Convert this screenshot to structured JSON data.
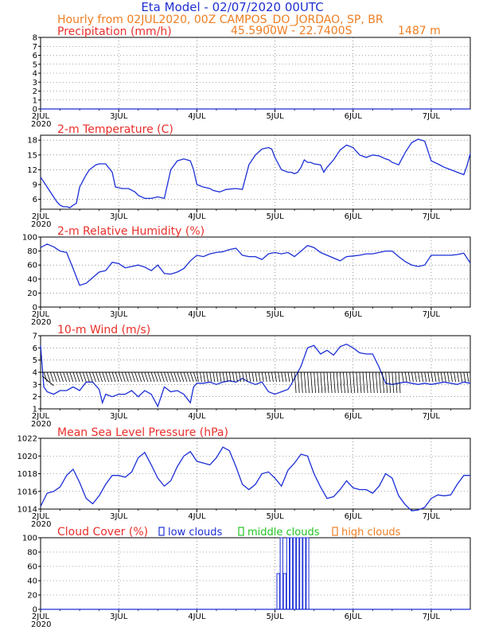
{
  "header": {
    "title": "Eta Model - 02/07/2020 00UTC",
    "subtitle": "Hourly from 02JUL2020, 00Z  CAMPOS_DO_JORDAO, SP, BR",
    "coords": "45.5900W - 22.7400S",
    "elevation": "1487  m"
  },
  "colors": {
    "header_blue": "#1f2fd0",
    "header_orange": "#ee7d22",
    "panel_title": "#e8302b",
    "series": "#1c2fd6",
    "low_clouds": "#1c2fd6",
    "middle_clouds": "#22c322",
    "high_clouds": "#ee7d22"
  },
  "x_axis": {
    "day_labels": [
      "2JUL",
      "3JUL",
      "4JUL",
      "5JUL",
      "6JUL",
      "7JUL"
    ],
    "year_label": "2020",
    "range_hours": [
      0,
      132
    ]
  },
  "panels": {
    "precip_title": "Precipitation (mm/h)",
    "temp_title": "2-m Temperature (C)",
    "rh_title": "2-m Relative Humidity (%)",
    "wind_title": "10-m Wind (m/s)",
    "pressure_title": "Mean Sea Level Pressure (hPa)",
    "cloud_title": "Cloud Cover (%)",
    "legend": {
      "low": "low clouds",
      "middle": "middle clouds",
      "high": "high clouds"
    }
  },
  "chart_data": [
    {
      "id": "precip",
      "type": "line",
      "title": "Precipitation (mm/h)",
      "ylim": [
        0,
        8
      ],
      "yticks": [
        0,
        1,
        2,
        3,
        4,
        5,
        6,
        7,
        8
      ],
      "x": [
        0,
        132
      ],
      "y": [
        0,
        0
      ]
    },
    {
      "id": "temp",
      "type": "line",
      "title": "2-m Temperature (C)",
      "ylim": [
        4,
        19
      ],
      "yticks": [
        6,
        9,
        12,
        15,
        18
      ],
      "x": [
        0,
        2,
        4,
        5,
        6,
        7,
        8,
        9,
        10,
        11,
        12,
        14,
        15,
        17,
        18,
        20,
        22,
        23,
        25,
        27,
        29,
        30,
        32,
        34,
        36,
        38,
        40,
        42,
        44,
        46,
        47,
        48,
        50,
        52,
        53,
        55,
        57,
        60,
        62,
        64,
        66,
        68,
        70,
        71,
        72,
        74,
        76,
        77,
        78,
        79,
        80,
        81,
        82,
        83,
        84,
        86,
        87,
        88,
        90,
        92,
        94,
        96,
        98,
        100,
        102,
        104,
        106,
        107,
        108,
        110,
        112,
        114,
        116,
        118,
        120,
        122,
        124,
        126,
        128,
        130,
        131,
        132
      ],
      "y": [
        10.5,
        8.5,
        6.5,
        5.5,
        4.8,
        4.5,
        4.5,
        4.3,
        4.8,
        5.2,
        8.5,
        11.0,
        12.0,
        13.0,
        13.2,
        13.2,
        11.5,
        8.5,
        8.2,
        8.2,
        7.5,
        6.8,
        6.2,
        6.2,
        6.5,
        6.2,
        12.0,
        13.8,
        14.2,
        13.8,
        12.0,
        9.0,
        8.5,
        8.2,
        7.8,
        7.5,
        8.0,
        8.2,
        8.0,
        13.0,
        15.0,
        16.2,
        16.5,
        16.2,
        14.5,
        12.0,
        11.5,
        11.5,
        11.2,
        11.5,
        12.5,
        14.0,
        13.5,
        13.5,
        13.2,
        13.0,
        11.5,
        12.5,
        14.0,
        16.0,
        17.0,
        16.5,
        15.0,
        14.5,
        15.0,
        14.8,
        14.2,
        14.0,
        13.5,
        13.0,
        15.5,
        17.5,
        18.2,
        17.8,
        13.8,
        13.2,
        12.5,
        12.0,
        11.5,
        11.0,
        12.8,
        15.3
      ]
    },
    {
      "id": "rh",
      "type": "line",
      "title": "2-m Relative Humidity (%)",
      "ylim": [
        0,
        100
      ],
      "yticks": [
        0,
        20,
        40,
        60,
        80,
        100
      ],
      "x": [
        0,
        2,
        4,
        6,
        8,
        10,
        12,
        14,
        16,
        18,
        20,
        22,
        24,
        26,
        28,
        30,
        32,
        34,
        36,
        38,
        40,
        42,
        44,
        46,
        48,
        50,
        52,
        54,
        56,
        58,
        60,
        62,
        64,
        66,
        68,
        70,
        72,
        74,
        76,
        78,
        80,
        82,
        84,
        86,
        88,
        90,
        92,
        94,
        96,
        98,
        100,
        102,
        104,
        106,
        108,
        110,
        112,
        114,
        116,
        118,
        120,
        122,
        124,
        126,
        128,
        130,
        132
      ],
      "y": [
        85,
        90,
        86,
        80,
        78,
        55,
        31,
        34,
        42,
        50,
        52,
        64,
        62,
        56,
        58,
        60,
        57,
        52,
        60,
        48,
        47,
        50,
        55,
        66,
        74,
        72,
        76,
        78,
        79,
        82,
        84,
        74,
        72,
        72,
        68,
        76,
        78,
        76,
        78,
        72,
        80,
        88,
        85,
        78,
        74,
        70,
        66,
        72,
        73,
        74,
        76,
        76,
        78,
        80,
        80,
        72,
        65,
        60,
        58,
        60,
        74,
        74,
        74,
        74,
        75,
        77,
        63
      ]
    },
    {
      "id": "wind",
      "type": "line",
      "title": "10-m Wind (m/s)",
      "ylim": [
        1,
        7
      ],
      "yticks": [
        1,
        2,
        3,
        4,
        5,
        6,
        7
      ],
      "x": [
        0,
        1,
        2,
        4,
        6,
        8,
        10,
        12,
        14,
        16,
        18,
        19,
        20,
        22,
        24,
        26,
        28,
        30,
        32,
        34,
        36,
        38,
        40,
        42,
        44,
        46,
        47,
        48,
        50,
        52,
        54,
        56,
        58,
        60,
        62,
        64,
        66,
        68,
        70,
        72,
        74,
        76,
        77,
        78,
        80,
        82,
        84,
        86,
        88,
        90,
        92,
        94,
        96,
        98,
        100,
        102,
        104,
        106,
        108,
        110,
        112,
        114,
        116,
        118,
        120,
        122,
        124,
        126,
        128,
        130,
        132
      ],
      "y": [
        6.2,
        2.8,
        2.4,
        2.2,
        2.5,
        2.5,
        2.8,
        2.5,
        3.2,
        3.2,
        2.6,
        1.5,
        2.2,
        2.0,
        2.2,
        2.2,
        2.5,
        2.0,
        2.5,
        2.2,
        1.2,
        2.8,
        2.4,
        2.5,
        2.2,
        1.5,
        2.8,
        3.1,
        3.1,
        3.2,
        3.0,
        3.2,
        3.3,
        3.2,
        3.5,
        3.2,
        3.0,
        3.2,
        2.4,
        2.2,
        2.4,
        2.6,
        3.0,
        3.5,
        4.5,
        6.0,
        6.2,
        5.5,
        5.8,
        5.4,
        6.1,
        6.3,
        6.0,
        5.6,
        5.5,
        5.5,
        4.4,
        3.1,
        3.0,
        3.1,
        3.2,
        3.1,
        3.0,
        3.1,
        3.0,
        3.1,
        3.2,
        3.1,
        3.0,
        3.2,
        3.1
      ]
    },
    {
      "id": "pressure",
      "type": "line",
      "title": "Mean Sea Level Pressure (hPa)",
      "ylim": [
        1014,
        1022
      ],
      "yticks": [
        1014,
        1016,
        1018,
        1020,
        1022
      ],
      "x": [
        0,
        2,
        4,
        6,
        8,
        10,
        12,
        14,
        16,
        18,
        20,
        22,
        24,
        26,
        28,
        30,
        32,
        34,
        36,
        38,
        40,
        42,
        44,
        46,
        48,
        50,
        52,
        54,
        56,
        58,
        60,
        62,
        64,
        66,
        68,
        70,
        72,
        74,
        76,
        78,
        80,
        82,
        84,
        86,
        88,
        90,
        92,
        94,
        96,
        98,
        100,
        102,
        104,
        106,
        108,
        110,
        112,
        114,
        116,
        118,
        120,
        122,
        124,
        126,
        128,
        130,
        132
      ],
      "y": [
        1014.3,
        1015.8,
        1016.0,
        1016.5,
        1017.8,
        1018.5,
        1017.0,
        1015.2,
        1014.6,
        1015.5,
        1016.8,
        1017.8,
        1017.8,
        1017.6,
        1018.2,
        1019.8,
        1020.4,
        1019.0,
        1017.5,
        1016.6,
        1017.2,
        1018.8,
        1020.0,
        1020.5,
        1019.4,
        1019.2,
        1019.0,
        1019.8,
        1021.0,
        1020.6,
        1018.8,
        1016.8,
        1016.2,
        1016.8,
        1018.0,
        1018.2,
        1017.5,
        1016.6,
        1018.4,
        1019.2,
        1020.2,
        1020.0,
        1018.0,
        1016.5,
        1015.2,
        1015.4,
        1016.2,
        1017.2,
        1016.4,
        1016.2,
        1016.2,
        1015.8,
        1016.6,
        1018.0,
        1017.5,
        1015.5,
        1014.5,
        1013.8,
        1013.9,
        1014.2,
        1015.2,
        1015.6,
        1015.5,
        1015.6,
        1016.8,
        1017.8,
        1017.8
      ]
    },
    {
      "id": "cloud",
      "type": "bar",
      "title": "Cloud Cover (%)",
      "ylim": [
        0,
        100
      ],
      "yticks": [
        0,
        20,
        40,
        60,
        80,
        100
      ],
      "series": [
        {
          "name": "low clouds",
          "x": [
            73,
            74,
            75,
            76,
            77,
            78,
            79,
            80,
            81,
            82
          ],
          "values": [
            50,
            100,
            50,
            100,
            100,
            100,
            100,
            100,
            100,
            100
          ]
        },
        {
          "name": "middle clouds",
          "x": [],
          "values": []
        },
        {
          "name": "high clouds",
          "x": [],
          "values": []
        }
      ]
    }
  ]
}
